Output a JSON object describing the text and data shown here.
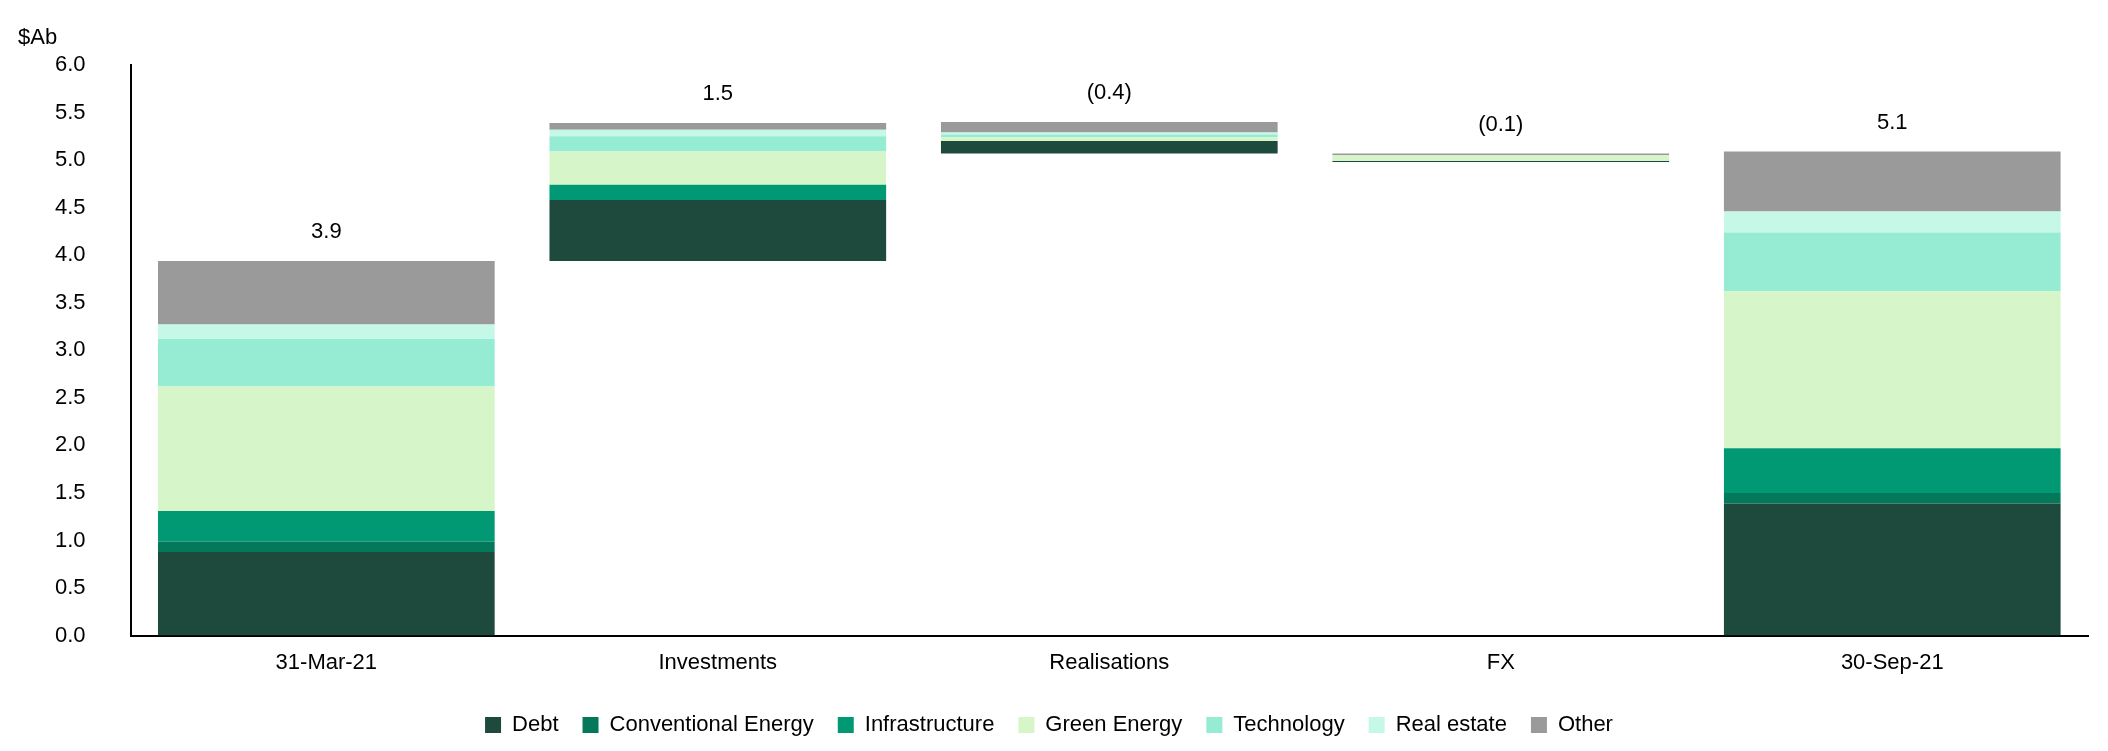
{
  "chart_data": {
    "type": "bar",
    "ylabel": "$Ab",
    "categories": [
      "31-Mar-21",
      "Investments",
      "Realisations",
      "FX",
      "30-Sep-21"
    ],
    "series": [
      {
        "name": "Debt",
        "color": "#1e4a3e",
        "base": [
          0,
          3.94,
          5.07,
          4.98,
          0
        ],
        "values": [
          0.88,
          0.64,
          0.13,
          0.01,
          1.39
        ]
      },
      {
        "name": "Conventional Energy",
        "color": "#04785a",
        "base": [
          0.88,
          null,
          null,
          null,
          1.39
        ],
        "values": [
          0.11,
          null,
          null,
          null,
          0.11
        ]
      },
      {
        "name": "Infrastructure",
        "color": "#009973",
        "base": [
          0.99,
          4.58,
          null,
          null,
          1.5
        ],
        "values": [
          0.32,
          0.16,
          null,
          null,
          0.47
        ]
      },
      {
        "name": "Green Energy",
        "color": "#d6f5c9",
        "base": [
          1.31,
          4.74,
          5.2,
          4.99,
          1.97
        ],
        "values": [
          1.31,
          0.35,
          0.04,
          0.06,
          1.65
        ]
      },
      {
        "name": "Technology",
        "color": "#96ecd2",
        "base": [
          2.62,
          5.09,
          5.24,
          null,
          3.62
        ],
        "values": [
          0.5,
          0.16,
          0.03,
          null,
          0.62
        ]
      },
      {
        "name": "Real estate",
        "color": "#c6f8e8",
        "base": [
          3.12,
          5.25,
          5.27,
          null,
          4.24
        ],
        "values": [
          0.15,
          0.07,
          0.02,
          null,
          0.22
        ]
      },
      {
        "name": "Other",
        "color": "#9a9a9a",
        "base": [
          3.27,
          5.32,
          5.29,
          5.05,
          4.46
        ],
        "values": [
          0.67,
          0.07,
          0.11,
          0.02,
          0.63
        ]
      }
    ],
    "totals": [
      "3.9",
      "1.5",
      "(0.4)",
      "(0.1)",
      "5.1"
    ],
    "ylim": [
      0,
      6
    ],
    "yticks": [
      {
        "value": 0,
        "label": "0.0"
      },
      0.5,
      {
        "value": 1,
        "label": "1.0"
      },
      1.5,
      {
        "value": 2,
        "label": "2.0"
      },
      2.5,
      {
        "value": 3,
        "label": "3.0"
      },
      3.5,
      {
        "value": 4,
        "label": "4.0"
      },
      4.5,
      {
        "value": 5,
        "label": "5.0"
      },
      5.5,
      {
        "value": 6,
        "label": "6.0"
      }
    ],
    "grid": false,
    "legend": "bottom"
  }
}
